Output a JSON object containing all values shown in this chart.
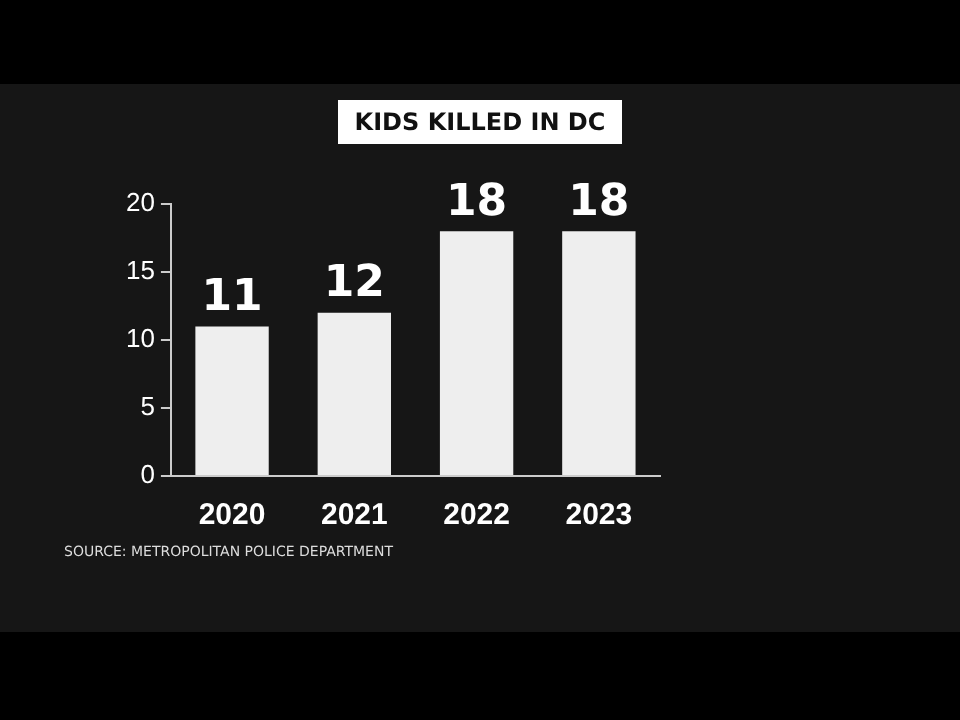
{
  "chart_data": {
    "type": "bar",
    "title": "KIDS KILLED IN DC",
    "categories": [
      "2020",
      "2021",
      "2022",
      "2023"
    ],
    "values": [
      11,
      12,
      18,
      18
    ],
    "color": "#eeeeee",
    "ylim": [
      0,
      20
    ],
    "yticks": [
      0,
      5,
      10,
      15,
      20
    ],
    "grid": false,
    "legend": false,
    "data_labels": true,
    "annotations": [
      "SOURCE: METROPOLITAN POLICE DEPARTMENT"
    ]
  }
}
